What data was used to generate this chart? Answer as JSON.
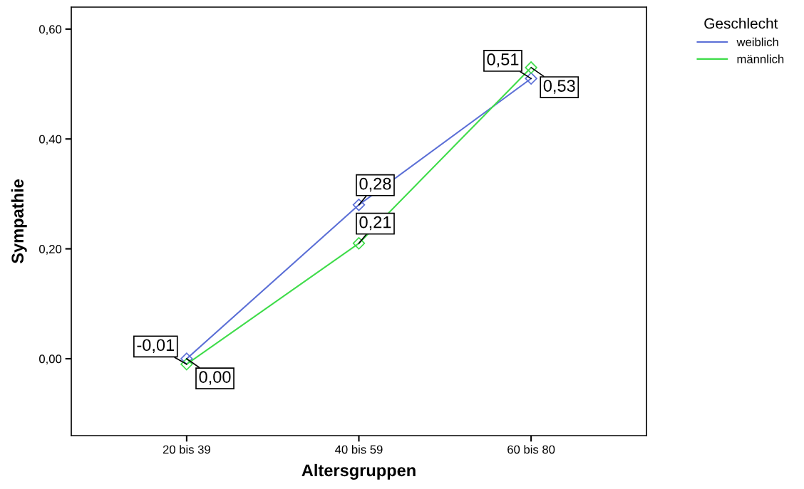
{
  "chart_data": {
    "type": "line",
    "xlabel": "Altersgruppen",
    "ylabel": "Sympathie",
    "legend_title": "Geschlecht",
    "categories": [
      "20 bis 39",
      "40 bis 59",
      "60 bis 80"
    ],
    "series": [
      {
        "name": "weiblich",
        "color": "#5b6fd6",
        "values": [
          0.0,
          0.28,
          0.51
        ],
        "value_labels": [
          "0,00",
          "0,28",
          "0,51"
        ]
      },
      {
        "name": "männlich",
        "color": "#3fdc4a",
        "values": [
          -0.01,
          0.21,
          0.53
        ],
        "value_labels": [
          "-0,01",
          "0,21",
          "0,53"
        ]
      }
    ],
    "ylim": [
      -0.14,
      0.64
    ],
    "yticks": [
      {
        "value": 0,
        "label": "0,00"
      },
      {
        "value": 0.2,
        "label": "0,20"
      },
      {
        "value": 0.4,
        "label": "0,40"
      },
      {
        "value": 0.6,
        "label": "0,60"
      }
    ],
    "legend": "top right",
    "marker": "diamond",
    "line_style": "solid",
    "grid": false
  }
}
